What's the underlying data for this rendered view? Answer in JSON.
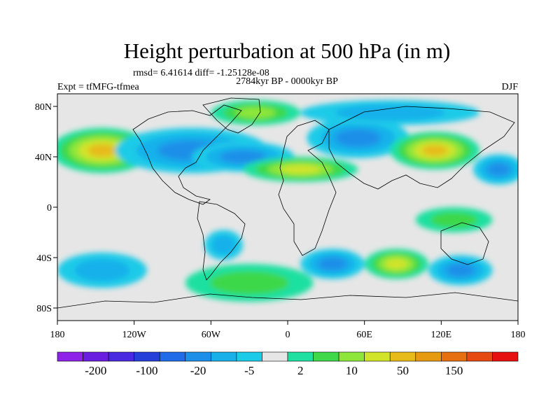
{
  "chart_data": {
    "type": "heatmap",
    "title": "Height perturbation at 500 hPa (in m)",
    "stats_line": "rmsd= 6.41614 diff= -1.25128e-08",
    "left_label": "Expt = tfMFG-tfmea",
    "center_label": "2784kyr BP - 0000kyr BP",
    "right_label": "DJF",
    "x_ticks": [
      {
        "value": -180,
        "label": "180"
      },
      {
        "value": -120,
        "label": "120W"
      },
      {
        "value": -60,
        "label": "60W"
      },
      {
        "value": 0,
        "label": "0"
      },
      {
        "value": 60,
        "label": "60E"
      },
      {
        "value": 120,
        "label": "120E"
      },
      {
        "value": 180,
        "label": "180"
      }
    ],
    "y_ticks": [
      {
        "value": 80,
        "label": "80N"
      },
      {
        "value": 40,
        "label": "40N"
      },
      {
        "value": 0,
        "label": "0"
      },
      {
        "value": -40,
        "label": "40S"
      },
      {
        "value": -80,
        "label": "80S"
      }
    ],
    "xlim": [
      -180,
      180
    ],
    "ylim": [
      -90,
      90
    ],
    "background_level_color": "#e6e6e6",
    "colorbar": {
      "colors": [
        "#8f22e8",
        "#6a1fe0",
        "#4a2ae0",
        "#2540d8",
        "#1f6be8",
        "#1e8fe8",
        "#19b0ea",
        "#1ccbe8",
        "#e6e6e6",
        "#1fe0a0",
        "#3ed84a",
        "#8fe63a",
        "#d2e42a",
        "#e6bb1a",
        "#e69a12",
        "#e6700f",
        "#e64a10",
        "#e61010"
      ],
      "labels": [
        {
          "boundary": 1,
          "label": "-200"
        },
        {
          "boundary": 3,
          "label": "-100"
        },
        {
          "boundary": 5,
          "label": "-20"
        },
        {
          "boundary": 7,
          "label": "-5"
        },
        {
          "boundary": 9,
          "label": "2"
        },
        {
          "boundary": 11,
          "label": "10"
        },
        {
          "boundary": 13,
          "label": "50"
        },
        {
          "boundary": 15,
          "label": "150"
        }
      ]
    },
    "anomalies": [
      {
        "name": "north-pacific-high",
        "lon": -145,
        "lat": 45,
        "level": 13,
        "rx": 40,
        "ry": 18
      },
      {
        "name": "north-america-low",
        "lon": -75,
        "lat": 45,
        "level": 5,
        "rx": 60,
        "ry": 18
      },
      {
        "name": "north-atlantic-low",
        "lon": -35,
        "lat": 40,
        "level": 5,
        "rx": 40,
        "ry": 12
      },
      {
        "name": "greenland-high",
        "lon": -25,
        "lat": 75,
        "level": 11,
        "rx": 35,
        "ry": 10
      },
      {
        "name": "sahara-high",
        "lon": 10,
        "lat": 30,
        "level": 12,
        "rx": 45,
        "ry": 10
      },
      {
        "name": "eurasia-low",
        "lon": 55,
        "lat": 55,
        "level": 5,
        "rx": 40,
        "ry": 16
      },
      {
        "name": "arctic-low",
        "lon": 80,
        "lat": 75,
        "level": 6,
        "rx": 70,
        "ry": 10
      },
      {
        "name": "asia-high",
        "lon": 115,
        "lat": 45,
        "level": 13,
        "rx": 35,
        "ry": 15
      },
      {
        "name": "west-pacific-low",
        "lon": 165,
        "lat": 30,
        "level": 5,
        "rx": 20,
        "ry": 12
      },
      {
        "name": "tropical-pacific-green",
        "lon": 130,
        "lat": -10,
        "level": 10,
        "rx": 30,
        "ry": 10
      },
      {
        "name": "south-atlantic-low",
        "lon": 35,
        "lat": -45,
        "level": 5,
        "rx": 25,
        "ry": 12
      },
      {
        "name": "indian-ocean-high",
        "lon": 85,
        "lat": -45,
        "level": 12,
        "rx": 25,
        "ry": 12
      },
      {
        "name": "south-australia-low",
        "lon": 135,
        "lat": -50,
        "level": 5,
        "rx": 25,
        "ry": 12
      },
      {
        "name": "south-pacific-low",
        "lon": -145,
        "lat": -50,
        "level": 6,
        "rx": 35,
        "ry": 14
      },
      {
        "name": "south-america-low",
        "lon": -50,
        "lat": -30,
        "level": 6,
        "rx": 15,
        "ry": 12
      },
      {
        "name": "southern-ocean-green",
        "lon": -30,
        "lat": -60,
        "level": 10,
        "rx": 50,
        "ry": 15
      }
    ]
  }
}
